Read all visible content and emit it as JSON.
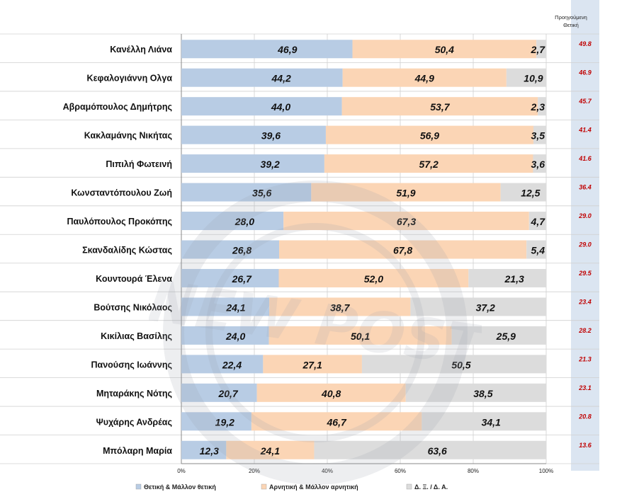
{
  "chart_data": {
    "type": "bar",
    "stacked": true,
    "orientation": "horizontal",
    "categories": [
      "Κανέλλη Λιάνα",
      "Κεφαλογιάννη Ολγα",
      "Αβραμόπουλος Δημήτρης",
      "Κακλαμάνης Νικήτας",
      "Πιπιλή Φωτεινή",
      "Κωνσταντόπουλου Ζωή",
      "Παυλόπουλος Προκόπης",
      "Σκανδαλίδης Κώστας",
      "Κουντουρά Έλενα",
      "Βούτσης Νικόλαος",
      "Κικίλιας Βασίλης",
      "Πανούσης Ιωάννης",
      "Μηταράκης Νότης",
      "Ψυχάρης Ανδρέας",
      "Μπόλαρη Μαρία"
    ],
    "series": [
      {
        "name": "Θετική & Μάλλον θετική",
        "color": "#b8cce4",
        "values": [
          46.9,
          44.2,
          44.0,
          39.6,
          39.2,
          35.6,
          28.0,
          26.8,
          26.7,
          24.1,
          24.0,
          22.4,
          20.7,
          19.2,
          12.3
        ],
        "labels": [
          "46,9",
          "44,2",
          "44,0",
          "39,6",
          "39,2",
          "35,6",
          "28,0",
          "26,8",
          "26,7",
          "24,1",
          "24,0",
          "22,4",
          "20,7",
          "19,2",
          "12,3"
        ]
      },
      {
        "name": "Αρνητική & Μάλλον αρνητική",
        "color": "#fbd5b5",
        "values": [
          50.4,
          44.9,
          53.7,
          56.9,
          57.2,
          51.9,
          67.3,
          67.8,
          52.0,
          38.7,
          50.1,
          27.1,
          40.8,
          46.7,
          24.1
        ],
        "labels": [
          "50,4",
          "44,9",
          "53,7",
          "56,9",
          "57,2",
          "51,9",
          "67,3",
          "67,8",
          "52,0",
          "38,7",
          "50,1",
          "27,1",
          "40,8",
          "46,7",
          "24,1"
        ]
      },
      {
        "name": "Δ. Ξ. / Δ. Α.",
        "color": "#dcdcdc",
        "values": [
          2.7,
          10.9,
          2.3,
          3.5,
          3.6,
          12.5,
          4.7,
          5.4,
          21.3,
          37.2,
          25.9,
          50.5,
          38.5,
          34.1,
          63.6
        ],
        "labels": [
          "2,7",
          "10,9",
          "2,3",
          "3,5",
          "3,6",
          "12,5",
          "4,7",
          "5,4",
          "21,3",
          "37,2",
          "25,9",
          "50,5",
          "38,5",
          "34,1",
          "63,6"
        ]
      }
    ],
    "previous": {
      "title_line1": "Προηγούμενη",
      "title_line2": "Θετική",
      "values": [
        "49.8",
        "46.9",
        "45.7",
        "41.4",
        "41.6",
        "36.4",
        "29.0",
        "29.0",
        "29.5",
        "23.4",
        "28.2",
        "21.3",
        "23.1",
        "20.8",
        "13.6"
      ]
    },
    "x_ticks": [
      "0%",
      "20%",
      "40%",
      "60%",
      "80%",
      "100%"
    ],
    "xlim": [
      0,
      100
    ],
    "grid": true,
    "legend_position": "bottom",
    "watermark_text": "NEW POST",
    "colors": {
      "positive": "#b8cce4",
      "negative": "#fbd5b5",
      "neutral": "#dcdcdc",
      "previous_text": "#c00000",
      "side_panel": "#dbe5f1"
    }
  }
}
